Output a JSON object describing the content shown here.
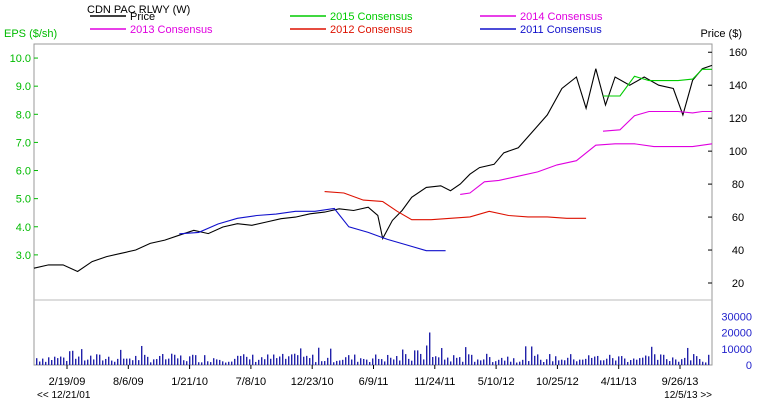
{
  "chart_data": {
    "type": "line",
    "title": "CDN PAC RLWY (W)",
    "left_axis_title": "EPS ($/sh)",
    "right_axis_title": "Price ($)",
    "left_ticks": [
      "3.0",
      "4.0",
      "5.0",
      "6.0",
      "7.0",
      "8.0",
      "9.0",
      "10.0"
    ],
    "right_ticks": [
      "20",
      "40",
      "60",
      "80",
      "100",
      "120",
      "140",
      "160"
    ],
    "volume_ticks": [
      "0",
      "10000",
      "20000",
      "30000"
    ],
    "x_tick_labels": [
      "2/19/09",
      "8/6/09",
      "1/21/10",
      "7/8/10",
      "12/23/10",
      "6/9/11",
      "11/24/11",
      "5/10/12",
      "10/25/12",
      "4/11/13",
      "9/26/13"
    ],
    "range_start": "<< 12/21/01",
    "range_end": "12/5/13 >>",
    "ylim_eps": [
      2.0,
      10.5
    ],
    "ylim_price": [
      20,
      165
    ],
    "ylim_volume": [
      0,
      40000
    ],
    "colors": {
      "price": "#000000",
      "c2015": "#00cc00",
      "c2014": "#e000e0",
      "c2013": "#e000e0",
      "c2012": "#dd1100",
      "c2011": "#1010cc",
      "left_axis": "#00bb00",
      "volume_axis": "#2222cc",
      "volume_bars": "#2222aa",
      "grid": "#cccccc"
    },
    "legend": [
      {
        "label": "Price",
        "color": "#000000"
      },
      {
        "label": "2015 Consensus",
        "color": "#00cc00"
      },
      {
        "label": "2014 Consensus",
        "color": "#e000e0"
      },
      {
        "label": "2013 Consensus",
        "color": "#e000e0"
      },
      {
        "label": "2012 Consensus",
        "color": "#dd1100"
      },
      {
        "label": "2011 Consensus",
        "color": "#1010cc"
      }
    ],
    "series": [
      {
        "name": "Price",
        "axis": "price",
        "points": [
          [
            0,
            29
          ],
          [
            0.03,
            31
          ],
          [
            0.06,
            31
          ],
          [
            0.09,
            27
          ],
          [
            0.12,
            33
          ],
          [
            0.15,
            36
          ],
          [
            0.18,
            38
          ],
          [
            0.21,
            40
          ],
          [
            0.24,
            44
          ],
          [
            0.27,
            46
          ],
          [
            0.3,
            49
          ],
          [
            0.33,
            52
          ],
          [
            0.36,
            50
          ],
          [
            0.39,
            54
          ],
          [
            0.42,
            56
          ],
          [
            0.45,
            55
          ],
          [
            0.48,
            57
          ],
          [
            0.51,
            59
          ],
          [
            0.54,
            60
          ],
          [
            0.57,
            62
          ],
          [
            0.6,
            63
          ],
          [
            0.63,
            65
          ],
          [
            0.66,
            64
          ],
          [
            0.69,
            66
          ],
          [
            0.71,
            61
          ],
          [
            0.72,
            47
          ],
          [
            0.74,
            58
          ],
          [
            0.76,
            64
          ],
          [
            0.78,
            72
          ],
          [
            0.81,
            78
          ],
          [
            0.84,
            79
          ],
          [
            0.86,
            76
          ],
          [
            0.88,
            80
          ],
          [
            0.9,
            86
          ],
          [
            0.92,
            90
          ],
          [
            0.95,
            92
          ],
          [
            0.97,
            99
          ],
          [
            1.0,
            102
          ],
          [
            1.03,
            112
          ],
          [
            1.06,
            122
          ],
          [
            1.09,
            138
          ],
          [
            1.12,
            145
          ],
          [
            1.14,
            126
          ],
          [
            1.16,
            150
          ],
          [
            1.18,
            128
          ],
          [
            1.2,
            145
          ],
          [
            1.23,
            140
          ],
          [
            1.26,
            145
          ],
          [
            1.29,
            140
          ],
          [
            1.32,
            138
          ],
          [
            1.34,
            122
          ],
          [
            1.36,
            143
          ],
          [
            1.38,
            150
          ],
          [
            1.4,
            152
          ]
        ]
      },
      {
        "name": "2015 Consensus",
        "axis": "eps",
        "points": [
          [
            1.175,
            8.65
          ],
          [
            1.21,
            8.65
          ],
          [
            1.24,
            9.35
          ],
          [
            1.27,
            9.2
          ],
          [
            1.3,
            9.2
          ],
          [
            1.33,
            9.2
          ],
          [
            1.36,
            9.25
          ],
          [
            1.38,
            9.6
          ],
          [
            1.4,
            9.6
          ]
        ]
      },
      {
        "name": "2014 Consensus",
        "axis": "eps",
        "points": [
          [
            1.175,
            7.4
          ],
          [
            1.21,
            7.45
          ],
          [
            1.24,
            7.95
          ],
          [
            1.27,
            8.1
          ],
          [
            1.3,
            8.1
          ],
          [
            1.33,
            8.1
          ],
          [
            1.36,
            8.05
          ],
          [
            1.38,
            8.1
          ],
          [
            1.4,
            8.1
          ]
        ]
      },
      {
        "name": "2013 Consensus",
        "axis": "eps",
        "points": [
          [
            0.88,
            5.15
          ],
          [
            0.9,
            5.2
          ],
          [
            0.93,
            5.6
          ],
          [
            0.96,
            5.65
          ],
          [
            1.0,
            5.8
          ],
          [
            1.04,
            5.95
          ],
          [
            1.08,
            6.2
          ],
          [
            1.12,
            6.35
          ],
          [
            1.16,
            6.9
          ],
          [
            1.2,
            6.95
          ],
          [
            1.24,
            6.95
          ],
          [
            1.28,
            6.85
          ],
          [
            1.32,
            6.85
          ],
          [
            1.36,
            6.85
          ],
          [
            1.38,
            6.9
          ],
          [
            1.4,
            6.95
          ]
        ]
      },
      {
        "name": "2012 Consensus",
        "axis": "eps",
        "points": [
          [
            0.6,
            5.25
          ],
          [
            0.64,
            5.2
          ],
          [
            0.68,
            4.95
          ],
          [
            0.72,
            4.9
          ],
          [
            0.75,
            4.55
          ],
          [
            0.78,
            4.25
          ],
          [
            0.82,
            4.25
          ],
          [
            0.86,
            4.3
          ],
          [
            0.9,
            4.35
          ],
          [
            0.94,
            4.55
          ],
          [
            0.98,
            4.4
          ],
          [
            1.02,
            4.35
          ],
          [
            1.06,
            4.35
          ],
          [
            1.1,
            4.3
          ],
          [
            1.14,
            4.3
          ]
        ]
      },
      {
        "name": "2011 Consensus",
        "axis": "eps",
        "points": [
          [
            0.3,
            3.75
          ],
          [
            0.34,
            3.8
          ],
          [
            0.38,
            4.1
          ],
          [
            0.42,
            4.3
          ],
          [
            0.46,
            4.4
          ],
          [
            0.5,
            4.45
          ],
          [
            0.54,
            4.55
          ],
          [
            0.58,
            4.55
          ],
          [
            0.62,
            4.65
          ],
          [
            0.65,
            4.0
          ],
          [
            0.69,
            3.8
          ],
          [
            0.73,
            3.55
          ],
          [
            0.77,
            3.35
          ],
          [
            0.81,
            3.15
          ],
          [
            0.85,
            3.15
          ]
        ]
      }
    ]
  }
}
